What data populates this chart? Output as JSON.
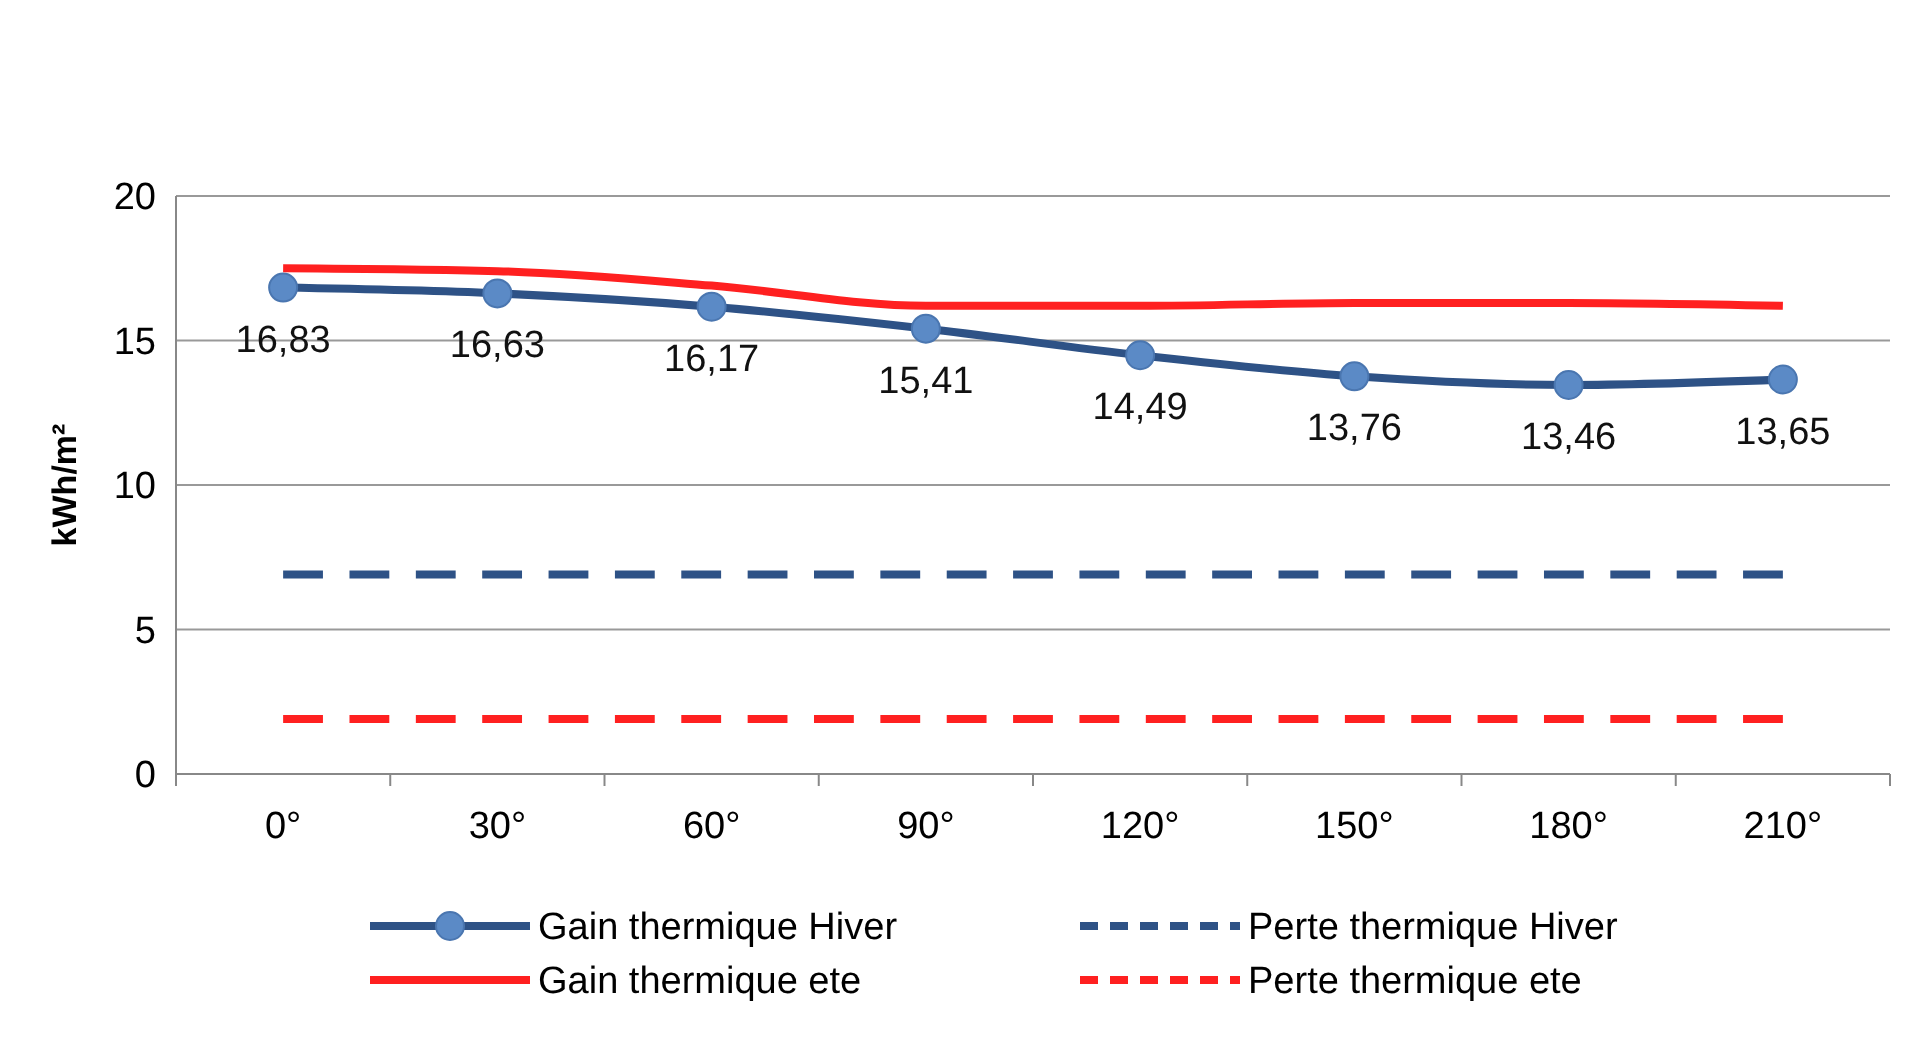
{
  "chart_data": {
    "type": "line",
    "ylabel": "kWh/m²",
    "categories": [
      "0°",
      "30°",
      "60°",
      "90°",
      "120°",
      "150°",
      "180°",
      "210°"
    ],
    "ylim": [
      0,
      20
    ],
    "yticks": [
      0,
      5,
      10,
      15,
      20
    ],
    "grid": "y",
    "legend": "bottom",
    "series": [
      {
        "name": "Gain thermique Hiver",
        "color": "#2e5286",
        "marker": "circle",
        "line_style": "solid",
        "values": [
          16.83,
          16.63,
          16.17,
          15.41,
          14.49,
          13.76,
          13.46,
          13.65
        ],
        "value_labels": [
          "16,83",
          "16,63",
          "16,17",
          "15,41",
          "14,49",
          "13,76",
          "13,46",
          "13,65"
        ]
      },
      {
        "name": "Perte thermique Hiver",
        "color": "#2e5286",
        "marker": "none",
        "line_style": "dashed",
        "values": [
          6.9,
          6.9,
          6.9,
          6.9,
          6.9,
          6.9,
          6.9,
          6.9
        ]
      },
      {
        "name": "Gain thermique ete",
        "color": "#ff2020",
        "marker": "none",
        "line_style": "solid",
        "values": [
          17.5,
          17.4,
          16.9,
          16.2,
          16.2,
          16.3,
          16.3,
          16.2
        ]
      },
      {
        "name": "Perte thermique ete",
        "color": "#ff2020",
        "marker": "none",
        "line_style": "dashed",
        "values": [
          1.9,
          1.9,
          1.9,
          1.9,
          1.9,
          1.9,
          1.9,
          1.9
        ]
      }
    ]
  }
}
